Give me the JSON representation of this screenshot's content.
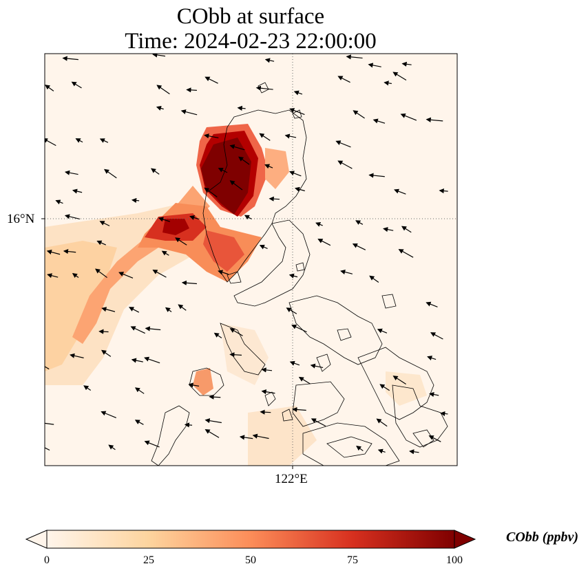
{
  "title": {
    "line1": "CObb at surface",
    "line2": "Time: 2024-02-23 22:00:00"
  },
  "map": {
    "gridlines": {
      "latitude": "16°N",
      "longitude": "122°E",
      "style": "dotted"
    },
    "coastline_color": "#000000",
    "background_color": "#fff5eb",
    "wind_vector_color": "#000000"
  },
  "colorbar": {
    "label": "CObb (ppbv)",
    "ticks": [
      "0",
      "25",
      "50",
      "75",
      "100"
    ],
    "extend": "both",
    "colormap": "OrRd",
    "colors": [
      "#fff5eb",
      "#fdd49e",
      "#fc8d59",
      "#d7301f",
      "#7f0000"
    ]
  }
}
